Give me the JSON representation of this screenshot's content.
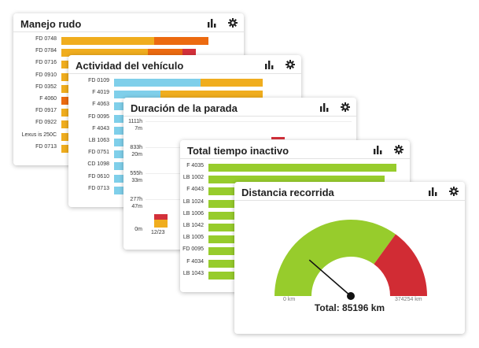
{
  "colors": {
    "orange": "#f0ad1e",
    "dark_orange": "#ec6a10",
    "red": "#d3303a",
    "blue": "#7fcfea",
    "green": "#97cc2c",
    "gauge_red": "#d12c34"
  },
  "icons": [
    "bar-chart-icon",
    "gear-icon"
  ],
  "card1": {
    "title": "Manejo rudo",
    "rows": [
      {
        "label": "FD 0748",
        "segments": [
          {
            "value": 0.58,
            "color": "orange"
          },
          {
            "value": 0.34,
            "color": "dark_orange"
          }
        ]
      },
      {
        "label": "FD 0784",
        "segments": [
          {
            "value": 0.54,
            "color": "orange"
          },
          {
            "value": 0.22,
            "color": "dark_orange"
          },
          {
            "value": 0.08,
            "color": "red"
          }
        ]
      },
      {
        "label": "FD 0716",
        "segments": [
          {
            "value": 0.05,
            "color": "orange"
          }
        ]
      },
      {
        "label": "FD 0910",
        "segments": [
          {
            "value": 0.05,
            "color": "orange"
          }
        ]
      },
      {
        "label": "FD 0352",
        "segments": [
          {
            "value": 0.05,
            "color": "orange"
          }
        ]
      },
      {
        "label": "F 4060",
        "segments": [
          {
            "value": 0.05,
            "color": "dark_orange"
          }
        ]
      },
      {
        "label": "FD 0917",
        "segments": [
          {
            "value": 0.05,
            "color": "orange"
          }
        ]
      },
      {
        "label": "FD 0922",
        "segments": [
          {
            "value": 0.05,
            "color": "orange"
          }
        ]
      },
      {
        "label": "Lexus is 250C",
        "segments": [
          {
            "value": 0.05,
            "color": "orange"
          }
        ]
      },
      {
        "label": "FD 0713",
        "segments": [
          {
            "value": 0.05,
            "color": "orange"
          }
        ]
      }
    ]
  },
  "card2": {
    "title": "Actividad del vehículo",
    "rows": [
      {
        "label": "FD 0109",
        "segments": [
          {
            "value": 0.52,
            "color": "blue"
          },
          {
            "value": 0.37,
            "color": "orange"
          }
        ]
      },
      {
        "label": "F 4019",
        "segments": [
          {
            "value": 0.28,
            "color": "blue"
          },
          {
            "value": 0.61,
            "color": "orange"
          }
        ]
      },
      {
        "label": "F 4063",
        "segments": [
          {
            "value": 0.1,
            "color": "blue"
          }
        ]
      },
      {
        "label": "FD 0095",
        "segments": [
          {
            "value": 0.1,
            "color": "blue"
          }
        ]
      },
      {
        "label": "F 4043",
        "segments": [
          {
            "value": 0.1,
            "color": "blue"
          }
        ]
      },
      {
        "label": "LB 1063",
        "segments": [
          {
            "value": 0.1,
            "color": "blue"
          }
        ]
      },
      {
        "label": "FD 0751",
        "segments": [
          {
            "value": 0.1,
            "color": "blue"
          }
        ]
      },
      {
        "label": "CD 1098",
        "segments": [
          {
            "value": 0.1,
            "color": "blue"
          }
        ]
      },
      {
        "label": "FD 0610",
        "segments": [
          {
            "value": 0.1,
            "color": "blue"
          }
        ]
      },
      {
        "label": "FD 0713",
        "segments": [
          {
            "value": 0.1,
            "color": "blue"
          }
        ]
      }
    ]
  },
  "card3": {
    "title": "Duración de la parada",
    "yticks": [
      {
        "line1": "1111h",
        "line2": "7m"
      },
      {
        "line1": "833h",
        "line2": "20m"
      },
      {
        "line1": "555h",
        "line2": "33m"
      },
      {
        "line1": "277h",
        "line2": "47m"
      },
      {
        "line1": "0m",
        "line2": ""
      }
    ],
    "xlabel": "12/23"
  },
  "card4": {
    "title": "Total tiempo inactivo",
    "rows": [
      {
        "label": "F 4035",
        "value": 0.92
      },
      {
        "label": "LB 1002",
        "value": 0.86
      },
      {
        "label": "F 4043",
        "value": 0.16
      },
      {
        "label": "LB 1024",
        "value": 0.16
      },
      {
        "label": "LB 1006",
        "value": 0.16
      },
      {
        "label": "LB 1042",
        "value": 0.16
      },
      {
        "label": "LB 1005",
        "value": 0.16
      },
      {
        "label": "FD 0095",
        "value": 0.16
      },
      {
        "label": "F 4034",
        "value": 0.16
      },
      {
        "label": "LB 1043",
        "value": 0.16
      }
    ]
  },
  "card5": {
    "title": "Distancia recorrida",
    "min_label": "0 km",
    "max_label": "374254 km",
    "total_text": "Total: 85196 km",
    "value": 85196,
    "max": 374254,
    "green_fraction": 0.7
  }
}
